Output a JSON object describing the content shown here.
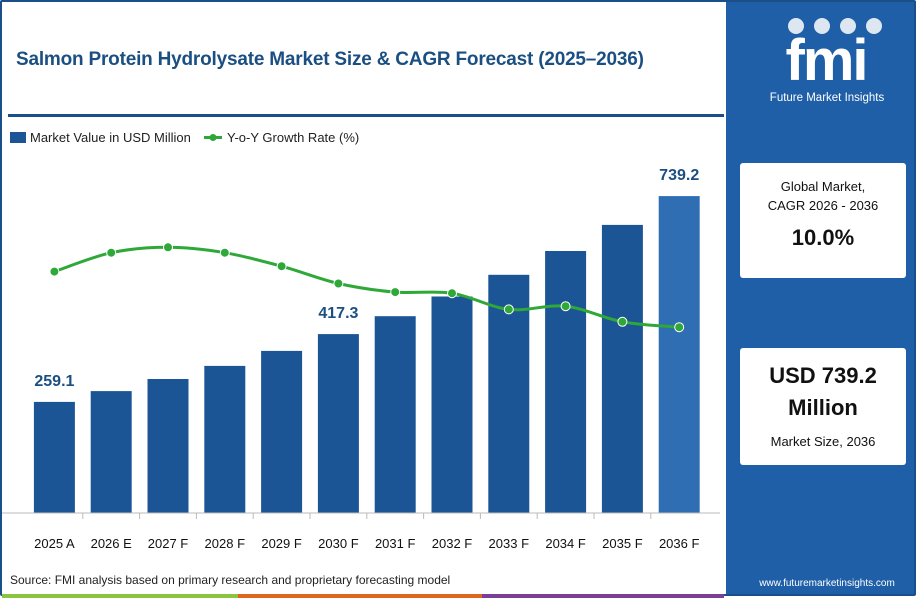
{
  "title": "Salmon Protein Hydrolysate Market Size & CAGR Forecast (2025–2036)",
  "brand": {
    "logo_text": "fmi",
    "name": "Future Market Insights",
    "website": "www.futuremarketinsights.com"
  },
  "cards": {
    "cagr": {
      "label_line1": "Global Market,",
      "label_line2": "CAGR 2026 - 2036",
      "value": "10.0%"
    },
    "size": {
      "value_line1": "USD 739.2",
      "value_line2": "Million",
      "label": "Market Size, 2036"
    }
  },
  "source": "Source: FMI analysis based on primary research and proprietary forecasting model",
  "colors": {
    "bar": "#1b5595",
    "bar_highlight": "#2f6eb3",
    "line": "#2ea838",
    "sidebar": "#1f5fa8",
    "title": "#1b4f82",
    "stripe": [
      "#8bc540",
      "#e0661d",
      "#7b3f98"
    ]
  },
  "chart_data": {
    "type": "bar",
    "categories": [
      "2025 A",
      "2026 E",
      "2027 F",
      "2028 F",
      "2029 F",
      "2030 F",
      "2031 F",
      "2032 F",
      "2033 F",
      "2034 F",
      "2035 F",
      "2036 F"
    ],
    "series": [
      {
        "name": "Market Value in USD Million",
        "type": "bar",
        "values": [
          259.1,
          284.3,
          312.5,
          343.0,
          378.0,
          417.3,
          459.0,
          505.0,
          555.5,
          611.0,
          672.0,
          739.2
        ]
      },
      {
        "name": "Y-o-Y Growth Rate (%)",
        "type": "line",
        "values": [
          9.6,
          9.95,
          10.05,
          9.95,
          9.7,
          9.38,
          9.22,
          9.2,
          8.9,
          8.96,
          8.67,
          8.57
        ]
      }
    ],
    "data_labels": [
      {
        "index": 0,
        "text": "259.1"
      },
      {
        "index": 5,
        "text": "417.3"
      },
      {
        "index": 11,
        "text": "739.2"
      }
    ],
    "highlight_index": 11,
    "ylim": [
      0,
      800
    ],
    "y2lim": [
      6,
      11
    ],
    "legend_position": "top-left",
    "grid": false
  }
}
